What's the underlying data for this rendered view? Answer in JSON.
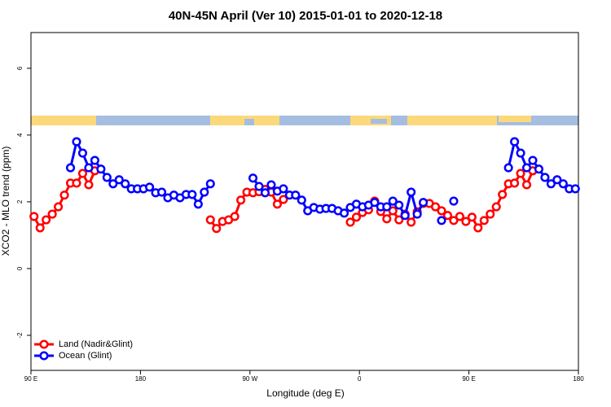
{
  "chart_data": {
    "type": "line",
    "title": "40N-45N April (Ver 10)   2015-01-01 to 2020-12-18",
    "xlabel": "Longitude (deg E)",
    "ylabel": "XCO2 - MLO trend (ppm)",
    "xlim": [
      90,
      540
    ],
    "ylim": [
      -3.05,
      7.07
    ],
    "xticks": [
      {
        "value": 90,
        "label": "90 E"
      },
      180,
      {
        "value": 270,
        "label": "90 W"
      },
      {
        "value": 360,
        "label": "0"
      },
      {
        "value": 450,
        "label": "90 E"
      },
      {
        "value": 540,
        "label": "180"
      }
    ],
    "yticks": [
      -2,
      0,
      2,
      4,
      6
    ],
    "legend": "bottom-left",
    "series": [
      {
        "name": "Land (Nadir&Glint)",
        "color": "#ff0000",
        "x": [
          92.5,
          97.5,
          102.5,
          107.5,
          112.5,
          117.5,
          122.5,
          127.5,
          132.5,
          137.5,
          142.5,
          null,
          237.5,
          242.5,
          247.5,
          252.5,
          257.5,
          262.5,
          267.5,
          272.5,
          277.5,
          282.5,
          287.5,
          292.5,
          297.5,
          null,
          352.5,
          357.5,
          362.5,
          367.5,
          372.5,
          377.5,
          382.5,
          387.5,
          392.5,
          397.5,
          402.5,
          407.5,
          412.5,
          417.5,
          422.5,
          427.5,
          432.5,
          437.5,
          442.5,
          447.5,
          452.5,
          457.5,
          462.5,
          467.5,
          472.5,
          477.5,
          482.5,
          487.5,
          492.5,
          497.5,
          502.5
        ],
        "values": [
          1.56,
          1.22,
          1.46,
          1.63,
          1.85,
          2.2,
          2.56,
          2.56,
          2.85,
          2.51,
          2.93,
          null,
          1.46,
          1.2,
          1.41,
          1.46,
          1.56,
          2.05,
          2.29,
          2.27,
          2.3,
          2.37,
          2.29,
          1.93,
          2.07,
          null,
          1.39,
          1.54,
          1.68,
          1.76,
          2.02,
          1.71,
          1.49,
          1.73,
          1.46,
          1.63,
          1.39,
          1.7,
          1.95,
          1.95,
          1.85,
          1.73,
          1.59,
          1.44,
          1.56,
          1.41,
          1.54,
          1.22,
          1.44,
          1.63,
          1.85,
          2.22,
          2.54,
          2.56,
          2.85,
          2.51,
          2.93
        ]
      },
      {
        "name": "Ocean (Glint)",
        "color": "#0000ff",
        "x": [
          122.5,
          127.5,
          132.5,
          137.5,
          142.5,
          147.5,
          152.5,
          157.5,
          162.5,
          167.5,
          172.5,
          177.5,
          182.5,
          187.5,
          192.5,
          197.5,
          202.5,
          207.5,
          212.5,
          217.5,
          222.5,
          227.5,
          232.5,
          237.5,
          null,
          272.5,
          277.5,
          282.5,
          287.5,
          292.5,
          297.5,
          302.5,
          307.5,
          312.5,
          317.5,
          322.5,
          327.5,
          332.5,
          337.5,
          342.5,
          347.5,
          352.5,
          357.5,
          362.5,
          367.5,
          372.5,
          377.5,
          382.5,
          387.5,
          392.5,
          397.5,
          402.5,
          407.5,
          412.5,
          null,
          427.5,
          null,
          437.5,
          null,
          482.5,
          487.5,
          492.5,
          497.5,
          502.5,
          507.5,
          512.5,
          517.5,
          522.5,
          527.5,
          532.5,
          537.5
        ],
        "values": [
          3.02,
          3.8,
          3.46,
          3.02,
          3.24,
          2.98,
          2.73,
          2.54,
          2.66,
          2.54,
          2.39,
          2.39,
          2.39,
          2.44,
          2.27,
          2.29,
          2.12,
          2.2,
          2.12,
          2.22,
          2.22,
          1.93,
          2.29,
          2.54,
          null,
          2.71,
          2.46,
          2.27,
          2.51,
          2.32,
          2.39,
          2.2,
          2.2,
          2.05,
          1.73,
          1.83,
          1.78,
          1.8,
          1.8,
          1.73,
          1.66,
          1.83,
          1.93,
          1.85,
          1.9,
          1.98,
          1.85,
          1.85,
          2.02,
          1.9,
          1.59,
          2.29,
          1.63,
          1.98,
          null,
          1.44,
          null,
          2.02,
          null,
          3.02,
          3.8,
          3.46,
          3.02,
          3.24,
          2.98,
          2.73,
          2.54,
          2.66,
          2.54,
          2.39,
          2.39
        ]
      }
    ]
  }
}
